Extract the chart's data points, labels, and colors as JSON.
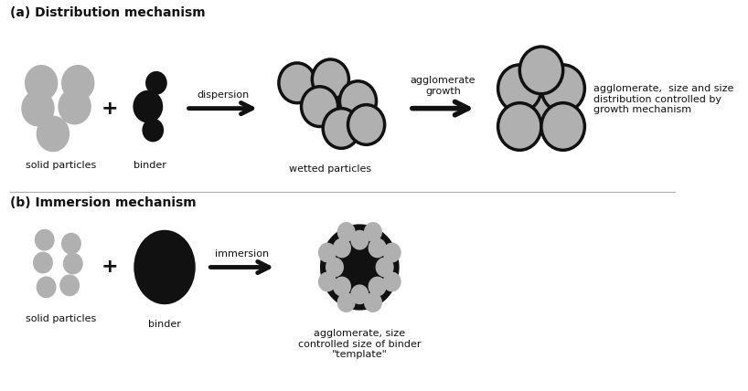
{
  "bg_color": "#ffffff",
  "gray_color": "#b0b0b0",
  "black_color": "#111111",
  "outline_color": "#111111",
  "section_a_title": "(a) Distribution mechanism",
  "section_b_title": "(b) Immersion mechanism",
  "label_solid": "solid particles",
  "label_binder": "binder",
  "label_wetted": "wetted particles",
  "label_dispersion": "dispersion",
  "label_agg_growth": "agglomerate\ngrowth",
  "label_agg_dist": "agglomerate,  size and size\ndistribution controlled by\ngrowth mechanism",
  "label_immersion": "immersion",
  "label_agg_immersion": "agglomerate, size\ncontrolled size of binder\n\"template\"",
  "font_size_title": 10,
  "font_size_label": 8,
  "font_size_arrow": 8,
  "font_size_plus": 16
}
